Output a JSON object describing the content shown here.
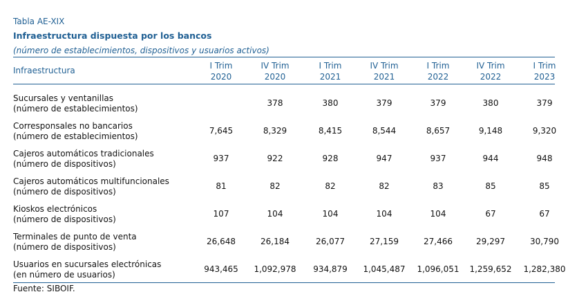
{
  "table": {
    "label": "Tabla AE-XIX",
    "title": "Infraestructura dispuesta por los bancos",
    "subtitle": "(número de establecimientos, dispositivos y usuarios activos)",
    "first_header": "Infraestructura",
    "columns": [
      {
        "line1": "I Trim",
        "line2": "2020"
      },
      {
        "line1": "IV Trim",
        "line2": "2020"
      },
      {
        "line1": "I Trim",
        "line2": "2021"
      },
      {
        "line1": "IV Trim",
        "line2": "2021"
      },
      {
        "line1": "I Trim",
        "line2": "2022"
      },
      {
        "line1": "IV Trim",
        "line2": "2022"
      },
      {
        "line1": "I Trim",
        "line2": "2023"
      }
    ],
    "rows": [
      {
        "label1": "Sucursales y ventanillas",
        "label2": "(número de establecimientos)",
        "values": [
          "",
          "378",
          "380",
          "379",
          "379",
          "380",
          "379"
        ]
      },
      {
        "label1": "Corresponsales no bancarios",
        "label2": "(número de establecimientos)",
        "values": [
          "7,645",
          "8,329",
          "8,415",
          "8,544",
          "8,657",
          "9,148",
          "9,320"
        ]
      },
      {
        "label1": "Cajeros automáticos tradicionales",
        "label2": "(número de dispositivos)",
        "values": [
          "937",
          "922",
          "928",
          "947",
          "937",
          "944",
          "948"
        ]
      },
      {
        "label1": "Cajeros automáticos multifuncionales",
        "label2": "(número de dispositivos)",
        "values": [
          "81",
          "82",
          "82",
          "82",
          "83",
          "85",
          "85"
        ]
      },
      {
        "label1": "Kioskos electrónicos",
        "label2": "(número de dispositivos)",
        "values": [
          "107",
          "104",
          "104",
          "104",
          "104",
          "67",
          "67"
        ]
      },
      {
        "label1": "Terminales de punto de venta",
        "label2": "(número de dispositivos)",
        "values": [
          "26,648",
          "26,184",
          "26,077",
          "27,159",
          "27,466",
          "29,297",
          "30,790"
        ]
      },
      {
        "label1": "Usuarios en sucursales electrónicas",
        "label2": "(en número de usuarios)",
        "values": [
          "943,465",
          "1,092,978",
          "934,879",
          "1,045,487",
          "1,096,051",
          "1,259,652",
          "1,282,380"
        ]
      }
    ],
    "source": "Fuente: SIBOIF."
  }
}
